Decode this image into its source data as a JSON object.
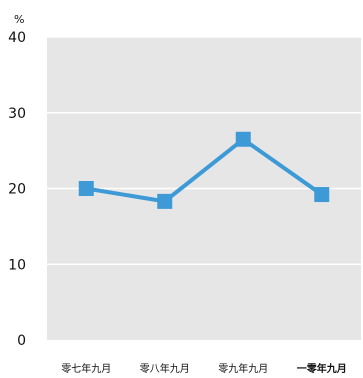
{
  "chart_data": {
    "type": "line",
    "y_unit": "%",
    "categories": [
      "零七年九月",
      "零八年九月",
      "零九年九月",
      "一零年九月"
    ],
    "highlight_category_index": 3,
    "series": [
      {
        "values": [
          20,
          18.3,
          26.5,
          19.2
        ]
      }
    ],
    "ylim": [
      0,
      40
    ],
    "yticks": [
      0,
      10,
      20,
      30,
      40
    ],
    "grid": true,
    "colors": {
      "plot_background": "#e6e6e6",
      "gridline": "#ffffff",
      "line": "#3d9ad6",
      "marker": "#3d9ad6"
    }
  }
}
